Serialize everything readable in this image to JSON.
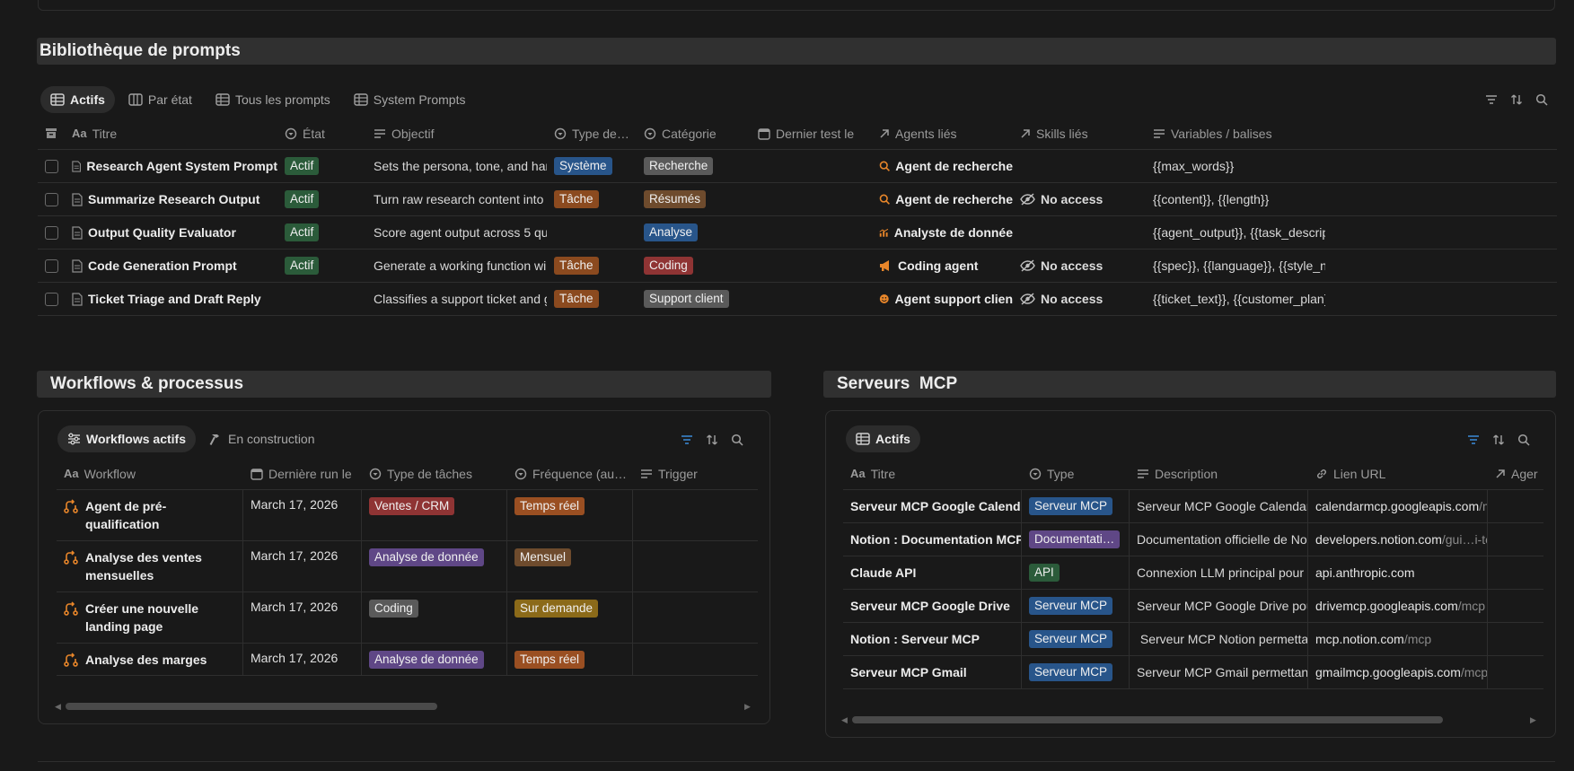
{
  "prompts": {
    "section_title": "Bibliothèque de prompts",
    "tabs": [
      {
        "label": "Actifs"
      },
      {
        "label": "Par état"
      },
      {
        "label": "Tous les prompts"
      },
      {
        "label": "System Prompts"
      }
    ],
    "columns": [
      "Titre",
      "État",
      "Objectif",
      "Type de…",
      "Catégorie",
      "Dernier test le",
      "Agents liés",
      "Skills liés",
      "Variables / balises"
    ],
    "rows": [
      {
        "title": "Research Agent System Prompt",
        "state": "Actif",
        "objective": "Sets the persona, tone, and hard",
        "type": "Système",
        "category": "Recherche",
        "agent": "Agent de recherche",
        "skills": "",
        "vars": "{{max_words}}"
      },
      {
        "title": "Summarize Research Output",
        "state": "Actif",
        "objective": "Turn raw research content into",
        "type": "Tâche",
        "category": "Résumés",
        "agent": "Agent de recherche",
        "skills": "No access",
        "vars": "{{content}}, {{length}}"
      },
      {
        "title": "Output Quality Evaluator",
        "state": "Actif",
        "objective": "Score agent output across 5 qu",
        "type": "",
        "category": "Analyse",
        "agent": "Analyste de donnée",
        "skills": "",
        "vars": "{{agent_output}}, {{task_descrip"
      },
      {
        "title": "Code Generation Prompt",
        "state": "Actif",
        "objective": "Generate a working function wi",
        "type": "Tâche",
        "category": "Coding",
        "agent": "Coding agent",
        "skills": "No access",
        "vars": "{{spec}}, {{language}}, {{style_not"
      },
      {
        "title": "Ticket Triage and Draft Reply",
        "state": "",
        "objective": "Classifies a support ticket and g",
        "type": "Tâche",
        "category": "Support client",
        "agent": "Agent support clien",
        "skills": "No access",
        "vars": "{{ticket_text}}, {{customer_plan}}"
      }
    ]
  },
  "workflows": {
    "section_title": "Workflows & processus",
    "tabs": [
      {
        "label": "Workflows actifs"
      },
      {
        "label": "En construction"
      }
    ],
    "columns": [
      "Workflow",
      "Dernière run le",
      "Type de tâches",
      "Fréquence (au…",
      "Trigger"
    ],
    "rows": [
      {
        "line1": "Agent de pré-",
        "line2": "qualification",
        "date": "March 17, 2026",
        "task": "Ventes / CRM",
        "freq": "Temps réel"
      },
      {
        "line1": "Analyse des ventes",
        "line2": "mensuelles",
        "date": "March 17, 2026",
        "task": "Analyse de donnée",
        "freq": "Mensuel"
      },
      {
        "line1": "Créer une nouvelle",
        "line2": "landing page",
        "date": "March 17, 2026",
        "task": "Coding",
        "freq": "Sur demande"
      },
      {
        "line1": "Analyse des marges",
        "line2": "",
        "date": "March 17, 2026",
        "task": "Analyse de donnée",
        "freq": "Temps réel"
      }
    ]
  },
  "mcp": {
    "section_title": "Serveurs  MCP",
    "tabs": [
      {
        "label": "Actifs"
      }
    ],
    "columns": [
      "Titre",
      "Type",
      "Description",
      "Lien URL",
      "Ager"
    ],
    "rows": [
      {
        "title": "Serveur MCP Google Calendar",
        "type": "Serveur MCP",
        "desc": "Serveur MCP Google Calendar p",
        "host": "calendarmcp.googleapis.com",
        "path": "/m"
      },
      {
        "title": "Notion : Documentation MCP",
        "type": "Documentati…",
        "desc": "Documentation officielle de No",
        "host": "developers.notion.com",
        "path": "/gui…i-te"
      },
      {
        "title": "Claude API",
        "type": "API",
        "desc": "Connexion LLM principal pour t",
        "host": "api.anthropic.com",
        "path": ""
      },
      {
        "title": "Serveur MCP Google Drive",
        "type": "Serveur MCP",
        "desc": "Serveur MCP Google Drive pour",
        "host": "drivemcp.googleapis.com",
        "path": "/mcp"
      },
      {
        "title": "Notion : Serveur MCP",
        "type": "Serveur MCP",
        "desc": " Serveur MCP Notion permettan",
        "host": "mcp.notion.com",
        "path": "/mcp"
      },
      {
        "title": "Serveur MCP Gmail",
        "type": "Serveur MCP",
        "desc": "Serveur MCP Gmail permettant",
        "host": "gmailmcp.googleapis.com",
        "path": "/mcp"
      }
    ]
  }
}
